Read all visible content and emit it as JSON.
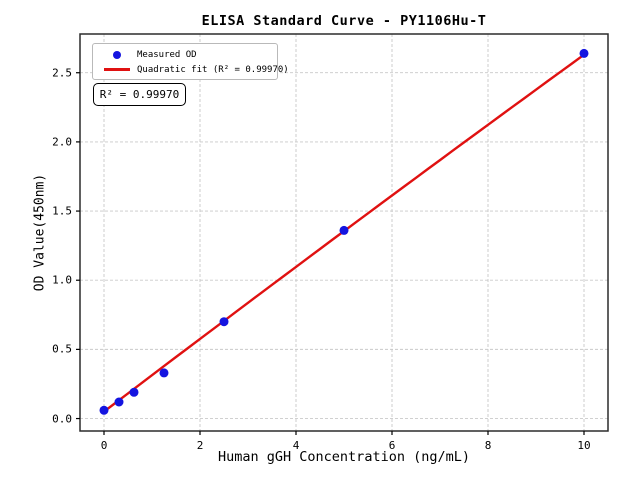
{
  "chart_data": {
    "type": "scatter",
    "title": "ELISA Standard Curve - PY1106Hu-T",
    "xlabel": "Human gGH Concentration (ng/mL)",
    "ylabel": "OD Value(450nm)",
    "xlim": [
      -0.5,
      10.5
    ],
    "ylim": [
      -0.09,
      2.78
    ],
    "x_ticks": [
      0,
      2,
      4,
      6,
      8,
      10
    ],
    "y_ticks": [
      0.0,
      0.5,
      1.0,
      1.5,
      2.0,
      2.5
    ],
    "x_tick_labels": [
      "0",
      "2",
      "4",
      "6",
      "8",
      "10"
    ],
    "y_tick_labels": [
      "0.0",
      "0.5",
      "1.0",
      "1.5",
      "2.0",
      "2.5"
    ],
    "grid": true,
    "grid_style": "dashed",
    "legend_position": "upper left",
    "legend": {
      "entries": [
        {
          "label": "Measured OD",
          "marker": "circle",
          "color": "#1414e0"
        },
        {
          "label": "Quadratic fit (R² = 0.99970)",
          "marker": "line",
          "color": "#e01111"
        }
      ]
    },
    "annotation": "R² = 0.99970",
    "series": [
      {
        "name": "Measured OD",
        "type": "scatter",
        "color": "#1414e0",
        "x": [
          0,
          0.3125,
          0.625,
          1.25,
          2.5,
          5,
          10
        ],
        "y": [
          0.06,
          0.12,
          0.19,
          0.33,
          0.7,
          1.36,
          2.64
        ]
      },
      {
        "name": "Quadratic fit",
        "type": "line",
        "color": "#e01111",
        "fit_anchor_points": [
          [
            0,
            0.05
          ],
          [
            5,
            1.355
          ],
          [
            10,
            2.63
          ]
        ],
        "x_range": [
          0,
          10
        ]
      }
    ]
  },
  "colors": {
    "grid": "#c9c9c9",
    "spine": "#2b2b2b",
    "background": "#ffffff"
  }
}
